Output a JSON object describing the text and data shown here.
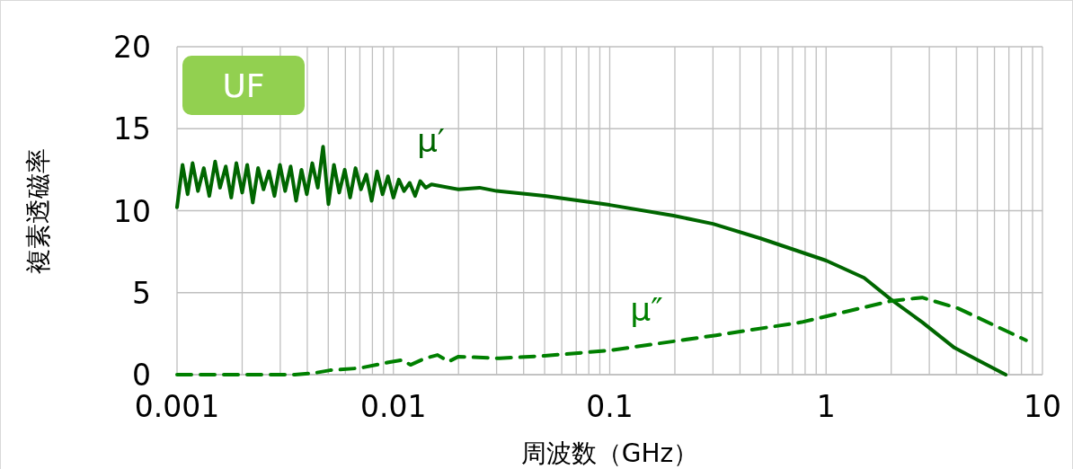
{
  "chart_data": {
    "type": "line",
    "ylabel": "複素透磁率",
    "xlabel": "周波数（GHz）",
    "annotations": [
      "UF"
    ],
    "log": "x",
    "grid": true,
    "xlim": [
      0.001,
      10
    ],
    "xticks": [
      0.001,
      0.01,
      0.1,
      1,
      10
    ],
    "ylim": [
      0,
      20
    ],
    "yticks": [
      0,
      5,
      10,
      15,
      20
    ],
    "series": [
      {
        "name": "μ′",
        "color": "#006600",
        "line_style": "solid",
        "x": [
          0.001,
          0.00106,
          0.00112,
          0.00118,
          0.00125,
          0.00133,
          0.00141,
          0.0015,
          0.00158,
          0.00168,
          0.00178,
          0.00188,
          0.002,
          0.00211,
          0.00224,
          0.00237,
          0.00251,
          0.00266,
          0.00282,
          0.00299,
          0.00316,
          0.00335,
          0.00355,
          0.00376,
          0.00398,
          0.00422,
          0.00447,
          0.00473,
          0.00501,
          0.00531,
          0.00562,
          0.00596,
          0.00631,
          0.00668,
          0.00708,
          0.0075,
          0.00794,
          0.00841,
          0.00891,
          0.00944,
          0.01,
          0.0106,
          0.0112,
          0.0119,
          0.0126,
          0.0133,
          0.0141,
          0.015,
          0.02,
          0.025,
          0.03,
          0.05,
          0.1,
          0.197,
          0.3,
          0.5,
          1,
          1.5,
          1.99,
          2.78,
          3.92,
          5,
          6.76
        ],
        "values": [
          10.2,
          12.8,
          11.0,
          12.9,
          11.2,
          12.6,
          10.9,
          13.0,
          11.4,
          12.7,
          10.8,
          12.9,
          11.1,
          12.8,
          10.5,
          12.6,
          11.3,
          12.4,
          10.9,
          12.8,
          11.2,
          12.7,
          10.6,
          12.5,
          11.0,
          12.9,
          11.4,
          13.9,
          10.4,
          12.8,
          11.1,
          12.5,
          10.8,
          12.6,
          11.3,
          12.2,
          10.6,
          12.4,
          11.0,
          12.1,
          10.8,
          11.9,
          11.2,
          11.7,
          10.9,
          11.8,
          11.4,
          11.6,
          11.3,
          11.4,
          11.2,
          10.9,
          10.35,
          9.7,
          9.2,
          8.3,
          6.96,
          5.9,
          4.6,
          3.2,
          1.64,
          0.9,
          0
        ]
      },
      {
        "name": "μ″",
        "color": "#008000",
        "line_style": "dashed",
        "x": [
          0.001,
          0.002,
          0.0035,
          0.0043,
          0.0051,
          0.007,
          0.0095,
          0.011,
          0.012,
          0.014,
          0.016,
          0.018,
          0.02,
          0.031,
          0.05,
          0.1,
          0.31,
          0.77,
          2,
          2.78,
          4.07,
          8.4
        ],
        "values": [
          0,
          0,
          0,
          0.1,
          0.27,
          0.4,
          0.75,
          0.9,
          0.6,
          1.0,
          1.2,
          0.8,
          1.1,
          1.0,
          1.15,
          1.48,
          2.4,
          3.2,
          4.5,
          4.7,
          4.05,
          2.1
        ]
      }
    ]
  }
}
